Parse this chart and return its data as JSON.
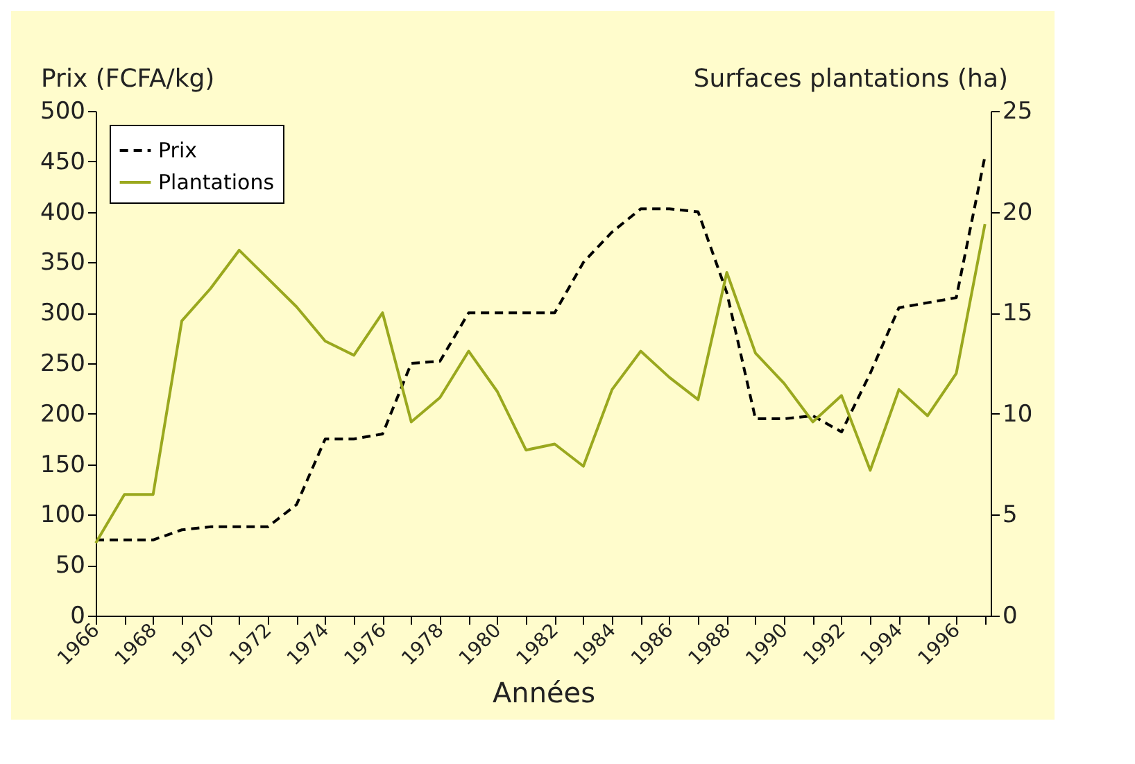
{
  "chart_data": {
    "type": "line",
    "xlabel": "Années",
    "ylabel": "Prix (FCFA/kg)",
    "y2label": "Surfaces plantations (ha)",
    "x": [
      1966,
      1967,
      1968,
      1969,
      1970,
      1971,
      1972,
      1973,
      1974,
      1975,
      1976,
      1977,
      1978,
      1979,
      1980,
      1981,
      1982,
      1983,
      1984,
      1985,
      1986,
      1987,
      1988,
      1989,
      1990,
      1991,
      1992,
      1993,
      1994,
      1995,
      1996,
      1997
    ],
    "xlim": [
      1966,
      1997.2
    ],
    "xticks": [
      1966,
      {
        "value": 1967,
        "label": null
      },
      1968,
      {
        "value": 1969,
        "label": null
      },
      1970,
      {
        "value": 1971,
        "label": null
      },
      1972,
      {
        "value": 1973,
        "label": null
      },
      1974,
      {
        "value": 1975,
        "label": null
      },
      1976,
      {
        "value": 1977,
        "label": null
      },
      1978,
      {
        "value": 1979,
        "label": null
      },
      1980,
      {
        "value": 1981,
        "label": null
      },
      1982,
      {
        "value": 1983,
        "label": null
      },
      1984,
      {
        "value": 1985,
        "label": null
      },
      1986,
      {
        "value": 1987,
        "label": null
      },
      1988,
      {
        "value": 1989,
        "label": null
      },
      1990,
      {
        "value": 1991,
        "label": null
      },
      1992,
      {
        "value": 1993,
        "label": null
      },
      1994,
      {
        "value": 1995,
        "label": null
      },
      1996,
      {
        "value": 1997,
        "label": null
      }
    ],
    "ylim": [
      0,
      500
    ],
    "yticks": [
      0,
      50,
      100,
      150,
      200,
      250,
      300,
      350,
      400,
      450,
      500
    ],
    "y2lim": [
      0,
      25
    ],
    "y2ticks": [
      0,
      5,
      10,
      15,
      20,
      25
    ],
    "legend": "top left",
    "grid": false,
    "series": [
      {
        "name": "Prix",
        "color": "#000000",
        "line_style": "dashed",
        "values": [
          75,
          75,
          75,
          85,
          88,
          88,
          88,
          110,
          175,
          175,
          180,
          250,
          252,
          300,
          300,
          300,
          300,
          350,
          380,
          403,
          403,
          400,
          320,
          195,
          195,
          198,
          182,
          240,
          305,
          310,
          315,
          455
        ]
      },
      {
        "name": "Plantations",
        "color": "#9aa81e",
        "line_style": "solid",
        "axis": "y2",
        "values": [
          3.6,
          6.0,
          6.0,
          14.6,
          16.2,
          18.1,
          16.7,
          15.3,
          13.6,
          12.9,
          15.0,
          9.6,
          10.8,
          13.1,
          11.1,
          8.2,
          8.5,
          7.4,
          11.2,
          13.1,
          11.8,
          10.7,
          17.0,
          13.0,
          11.5,
          9.6,
          10.9,
          7.2,
          11.2,
          9.9,
          12.0,
          19.4
        ]
      }
    ]
  }
}
